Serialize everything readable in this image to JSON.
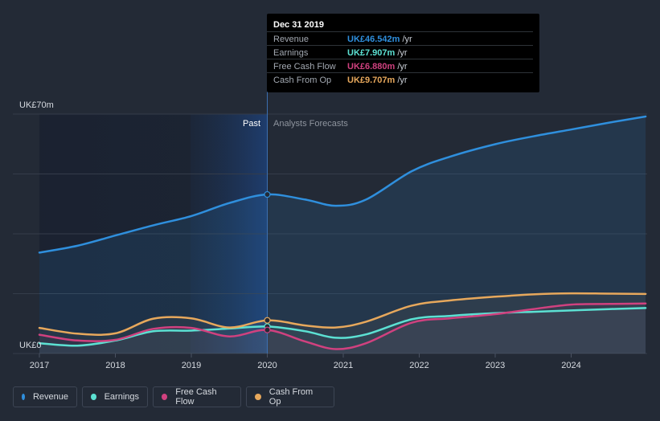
{
  "chart_data": {
    "type": "line",
    "y_max_label": "UK£70m",
    "y_min_label": "UK£0",
    "ylim": [
      0,
      70
    ],
    "x_ticks": [
      "2017",
      "2018",
      "2019",
      "2020",
      "2021",
      "2022",
      "2023",
      "2024"
    ],
    "past_label": "Past",
    "forecast_label": "Analysts Forecasts",
    "divider_x": 2020.0,
    "series": [
      {
        "name": "Revenue",
        "color": "#2f8fdd",
        "area": true,
        "points": [
          [
            2017.0,
            29.5
          ],
          [
            2017.5,
            31.5
          ],
          [
            2018.0,
            34.5
          ],
          [
            2018.5,
            37.5
          ],
          [
            2019.0,
            40.2
          ],
          [
            2019.5,
            44.0
          ],
          [
            2020.0,
            46.5
          ],
          [
            2020.5,
            45.0
          ],
          [
            2020.9,
            43.2
          ],
          [
            2021.3,
            45.0
          ],
          [
            2021.9,
            53.3
          ],
          [
            2022.4,
            57.5
          ],
          [
            2023.0,
            61.2
          ],
          [
            2023.5,
            63.5
          ],
          [
            2024.0,
            65.5
          ],
          [
            2024.5,
            67.5
          ],
          [
            2024.98,
            69.3
          ]
        ]
      },
      {
        "name": "Earnings",
        "color": "#5ce1d3",
        "points": [
          [
            2017.0,
            3.0
          ],
          [
            2017.5,
            2.3
          ],
          [
            2018.0,
            3.8
          ],
          [
            2018.5,
            6.5
          ],
          [
            2019.0,
            6.7
          ],
          [
            2019.5,
            7.3
          ],
          [
            2020.0,
            7.9
          ],
          [
            2020.5,
            6.5
          ],
          [
            2020.9,
            4.6
          ],
          [
            2021.3,
            5.6
          ],
          [
            2021.9,
            10.0
          ],
          [
            2022.4,
            11.0
          ],
          [
            2023.0,
            11.8
          ],
          [
            2023.5,
            12.2
          ],
          [
            2024.0,
            12.6
          ],
          [
            2024.5,
            13.0
          ],
          [
            2024.98,
            13.3
          ]
        ]
      },
      {
        "name": "Free Cash Flow",
        "color": "#d0417f",
        "points": [
          [
            2017.0,
            5.5
          ],
          [
            2017.5,
            3.8
          ],
          [
            2018.0,
            4.0
          ],
          [
            2018.5,
            7.2
          ],
          [
            2019.0,
            7.5
          ],
          [
            2019.5,
            5.0
          ],
          [
            2020.0,
            6.88
          ],
          [
            2020.5,
            3.5
          ],
          [
            2020.9,
            1.3
          ],
          [
            2021.3,
            3.0
          ],
          [
            2021.9,
            9.0
          ],
          [
            2022.4,
            10.3
          ],
          [
            2023.0,
            11.5
          ],
          [
            2023.5,
            13.0
          ],
          [
            2024.0,
            14.3
          ],
          [
            2024.5,
            14.5
          ],
          [
            2024.98,
            14.6
          ]
        ]
      },
      {
        "name": "Cash From Op",
        "color": "#e7a85c",
        "points": [
          [
            2017.0,
            7.5
          ],
          [
            2017.5,
            5.8
          ],
          [
            2018.0,
            5.9
          ],
          [
            2018.5,
            10.2
          ],
          [
            2019.0,
            10.3
          ],
          [
            2019.5,
            7.6
          ],
          [
            2020.0,
            9.7
          ],
          [
            2020.5,
            8.2
          ],
          [
            2020.9,
            7.6
          ],
          [
            2021.3,
            9.3
          ],
          [
            2021.9,
            14.0
          ],
          [
            2022.4,
            15.5
          ],
          [
            2023.0,
            16.6
          ],
          [
            2023.5,
            17.3
          ],
          [
            2024.0,
            17.6
          ],
          [
            2024.5,
            17.5
          ],
          [
            2024.98,
            17.4
          ]
        ]
      }
    ]
  },
  "tooltip": {
    "date": "Dec 31 2019",
    "rows": [
      {
        "label": "Revenue",
        "value": "UK£46.542m",
        "unit": "/yr",
        "color": "#2f8fdd"
      },
      {
        "label": "Earnings",
        "value": "UK£7.907m",
        "unit": "/yr",
        "color": "#5ce1d3"
      },
      {
        "label": "Free Cash Flow",
        "value": "UK£6.880m",
        "unit": "/yr",
        "color": "#d0417f"
      },
      {
        "label": "Cash From Op",
        "value": "UK£9.707m",
        "unit": "/yr",
        "color": "#e7a85c"
      }
    ]
  },
  "legend": [
    {
      "label": "Revenue",
      "color": "#2f8fdd"
    },
    {
      "label": "Earnings",
      "color": "#5ce1d3"
    },
    {
      "label": "Free Cash Flow",
      "color": "#d0417f"
    },
    {
      "label": "Cash From Op",
      "color": "#e7a85c"
    }
  ]
}
